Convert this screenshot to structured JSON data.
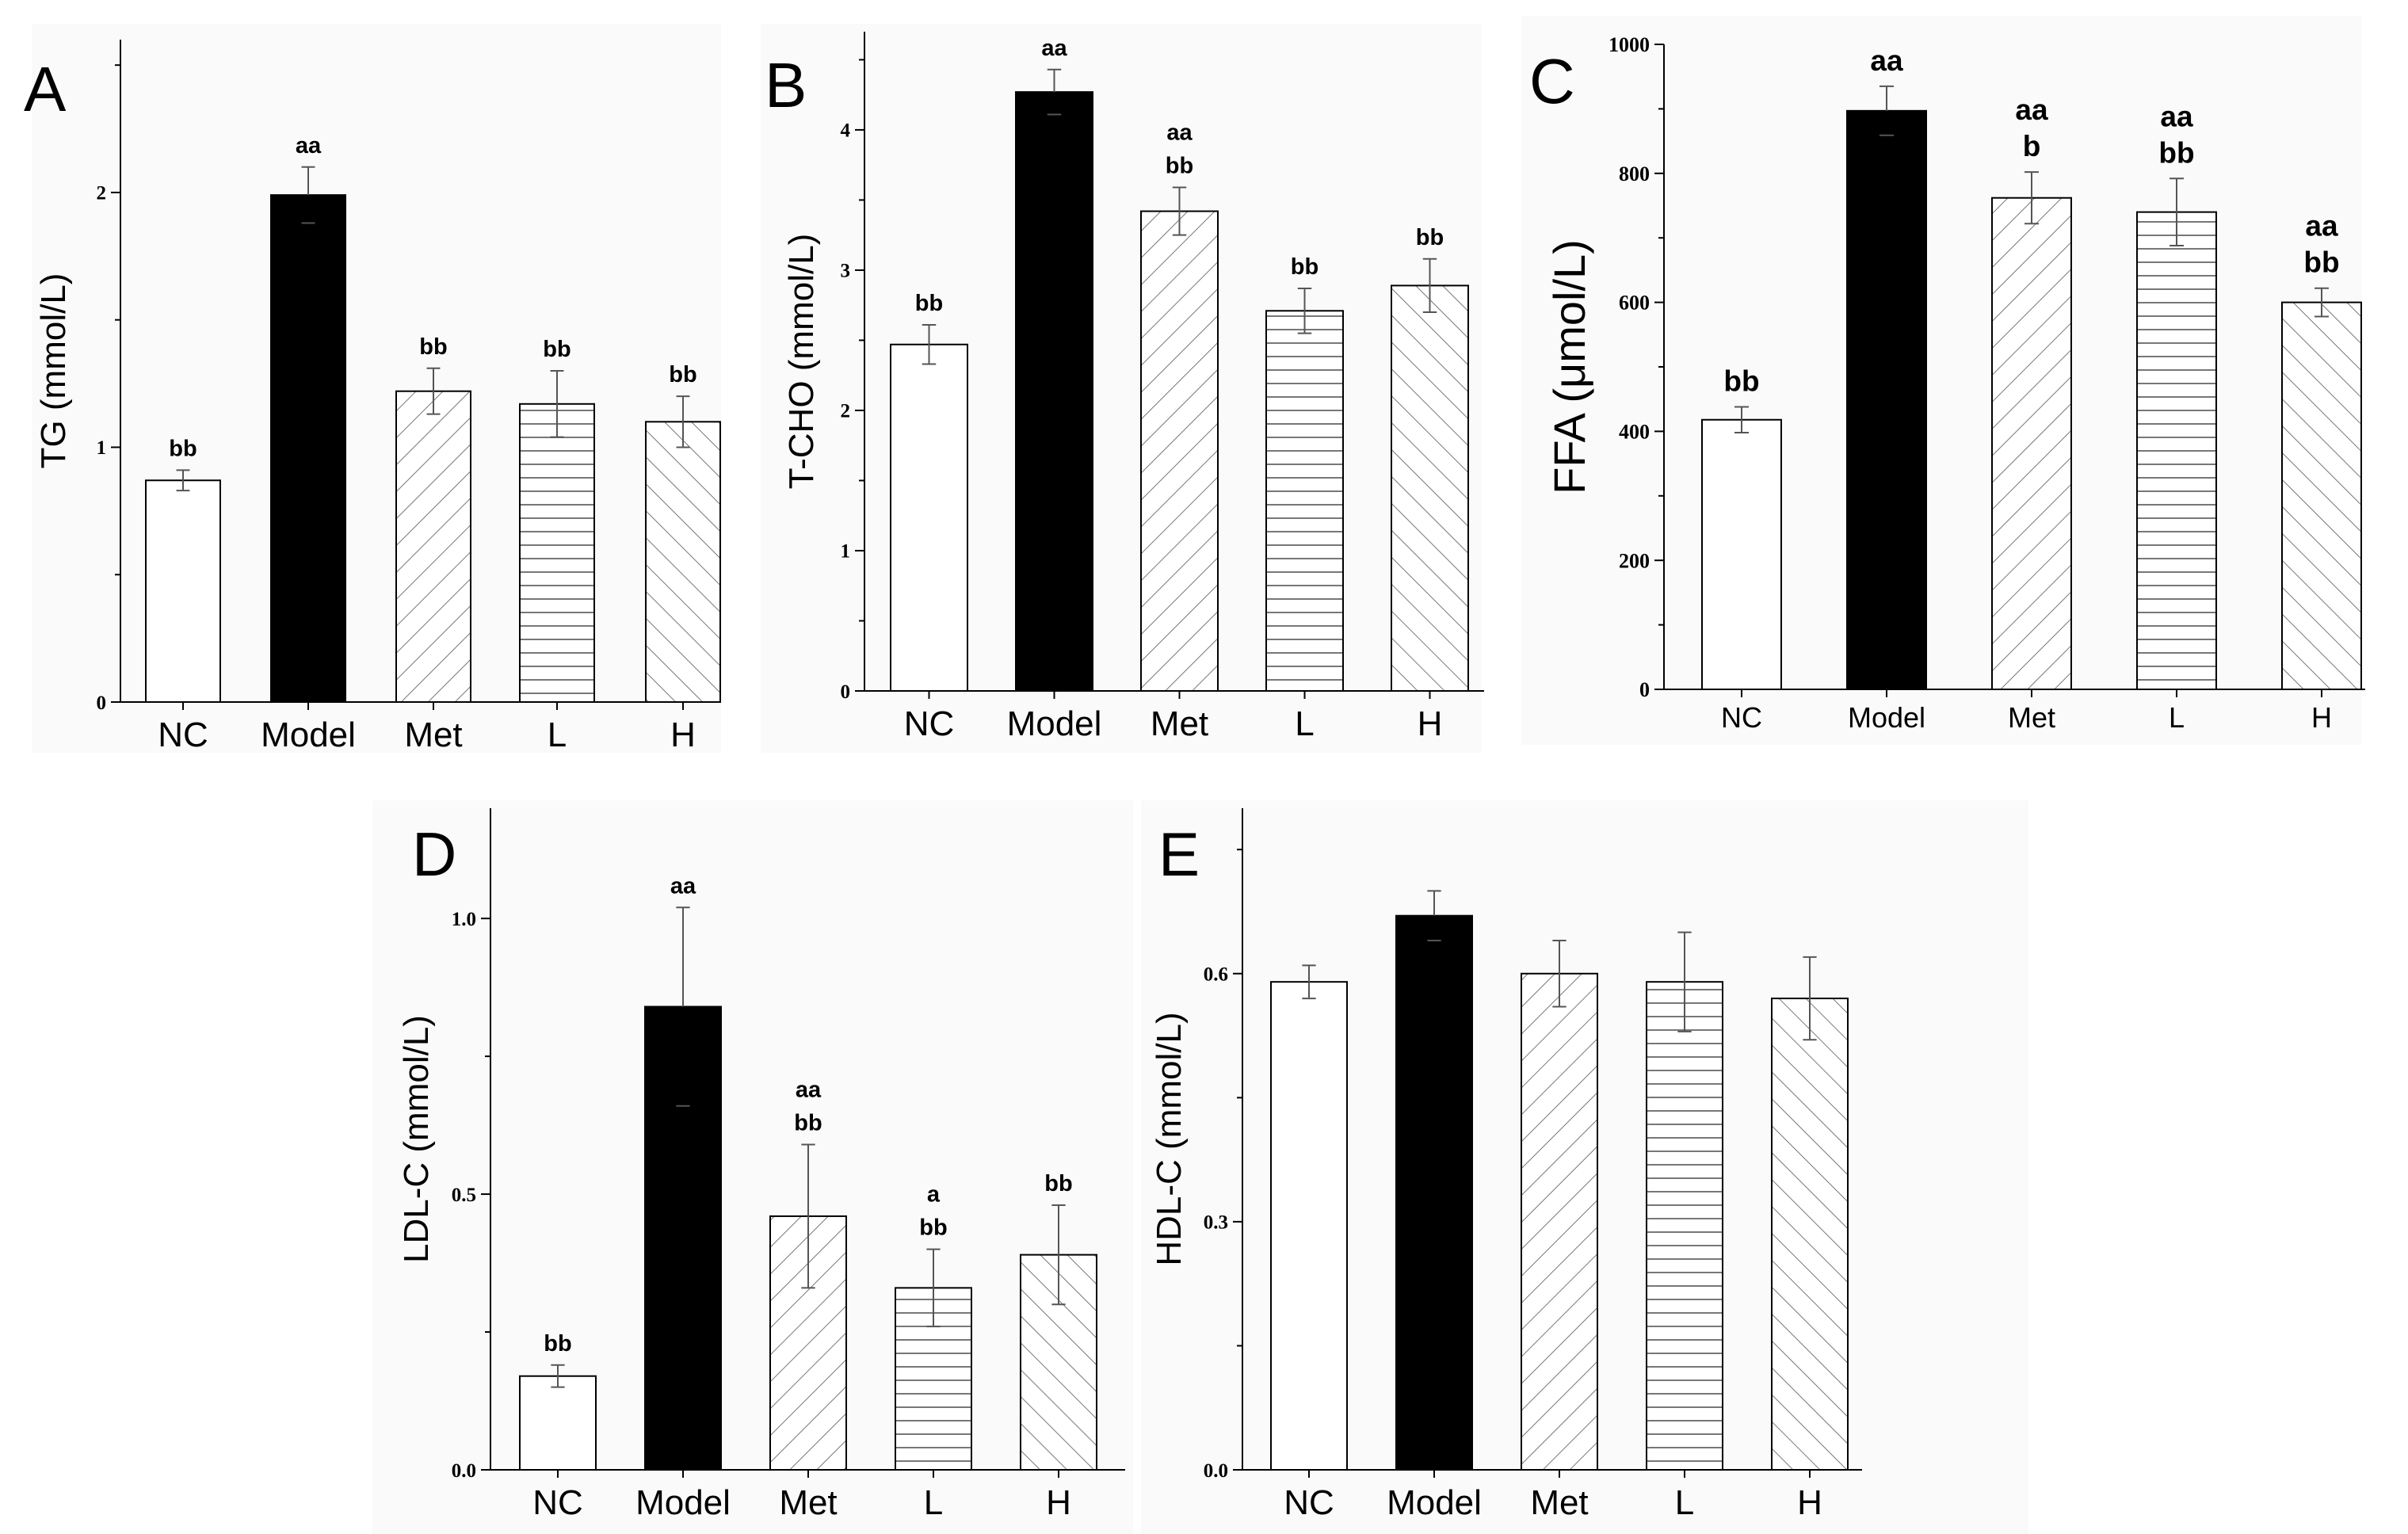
{
  "chart_data": [
    {
      "panel": "A",
      "type": "bar",
      "ylabel": "TG (mmol/L)",
      "categories": [
        "NC",
        "Model",
        "Met",
        "L",
        "H"
      ],
      "values": [
        0.87,
        1.99,
        1.22,
        1.17,
        1.1
      ],
      "errors": [
        0.04,
        0.11,
        0.09,
        0.13,
        0.1
      ],
      "significance": [
        [
          "bb"
        ],
        [
          "aa"
        ],
        [
          "bb"
        ],
        [
          "bb"
        ],
        [
          "bb"
        ]
      ],
      "ylim": [
        0,
        2.6
      ],
      "yticks": [
        0,
        1,
        2
      ],
      "yticklabels": [
        "0",
        "1",
        "2"
      ],
      "patterns": [
        "empty",
        "solid",
        "fwd",
        "horiz",
        "back"
      ]
    },
    {
      "panel": "B",
      "type": "bar",
      "ylabel": "T-CHO (mmol/L)",
      "categories": [
        "NC",
        "Model",
        "Met",
        "L",
        "H"
      ],
      "values": [
        2.47,
        4.27,
        3.42,
        2.71,
        2.89
      ],
      "errors": [
        0.14,
        0.16,
        0.17,
        0.16,
        0.19
      ],
      "significance": [
        [
          "bb"
        ],
        [
          "aa"
        ],
        [
          "aa",
          "bb"
        ],
        [
          "bb"
        ],
        [
          "bb"
        ]
      ],
      "ylim": [
        0,
        4.7
      ],
      "yticks": [
        0,
        1,
        2,
        3,
        4
      ],
      "yticklabels": [
        "0",
        "1",
        "2",
        "3",
        "4"
      ],
      "patterns": [
        "empty",
        "solid",
        "fwd",
        "horiz",
        "back"
      ]
    },
    {
      "panel": "C",
      "type": "bar",
      "ylabel": "FFA (μmol/L)",
      "categories": [
        "NC",
        "Model",
        "Met",
        "L",
        "H"
      ],
      "values": [
        418,
        897,
        762,
        740,
        600
      ],
      "errors": [
        20,
        38,
        40,
        52,
        22
      ],
      "significance": [
        [
          "bb"
        ],
        [
          "aa"
        ],
        [
          "aa",
          "b"
        ],
        [
          "aa",
          "bb"
        ],
        [
          "aa",
          "bb"
        ]
      ],
      "ylim": [
        0,
        1000
      ],
      "yticks": [
        0,
        200,
        400,
        600,
        800,
        1000
      ],
      "yticklabels": [
        "0",
        "200",
        "400",
        "600",
        "800",
        "1000"
      ],
      "patterns": [
        "empty",
        "solid",
        "fwd",
        "horiz",
        "back"
      ]
    },
    {
      "panel": "D",
      "type": "bar",
      "ylabel": "LDL-C (mmol/L)",
      "categories": [
        "NC",
        "Model",
        "Met",
        "L",
        "H"
      ],
      "values": [
        0.17,
        0.84,
        0.46,
        0.33,
        0.39
      ],
      "errors": [
        0.02,
        0.18,
        0.13,
        0.07,
        0.09
      ],
      "significance": [
        [
          "bb"
        ],
        [
          "aa"
        ],
        [
          "aa",
          "bb"
        ],
        [
          "a",
          "bb"
        ],
        [
          "bb"
        ]
      ],
      "ylim": [
        0,
        1.2
      ],
      "yticks": [
        0.0,
        0.5,
        1.0
      ],
      "yticklabels": [
        "0.0",
        "0.5",
        "1.0"
      ],
      "patterns": [
        "empty",
        "solid",
        "fwd",
        "horiz",
        "back"
      ]
    },
    {
      "panel": "E",
      "type": "bar",
      "ylabel": "HDL-C (mmol/L)",
      "categories": [
        "NC",
        "Model",
        "Met",
        "L",
        "H"
      ],
      "values": [
        0.59,
        0.67,
        0.6,
        0.59,
        0.57
      ],
      "errors": [
        0.02,
        0.03,
        0.04,
        0.06,
        0.05
      ],
      "significance": [
        [],
        [],
        [],
        [],
        []
      ],
      "ylim": [
        0,
        0.8
      ],
      "yticks": [
        0.0,
        0.3,
        0.6
      ],
      "yticklabels": [
        "0.0",
        "0.3",
        "0.6"
      ],
      "patterns": [
        "empty",
        "solid",
        "fwd",
        "horiz",
        "back"
      ]
    }
  ]
}
